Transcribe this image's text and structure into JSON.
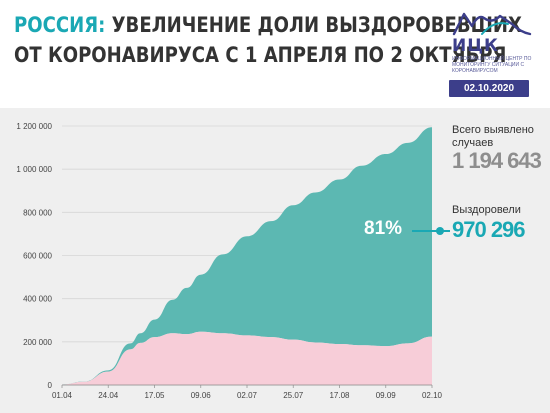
{
  "header": {
    "title_accent": "РОССИЯ:",
    "title_line1_rest": " УВЕЛИЧЕНИЕ ДОЛИ ВЫЗДОРОВЕВШИХ",
    "title_line2": "ОТ КОРОНАВИРУСА С 1 АПРЕЛЯ ПО 2 ОКТЯБРЯ",
    "logo_text": "ИЦК",
    "logo_subtitle": "Информационный центр по мониторингу ситуации с коронавирусом",
    "date": "02.10.2020"
  },
  "info": {
    "total_label": "Всего выявлено случаев",
    "total_value": "1 194 643",
    "recovered_label": "Выздоровели",
    "recovered_value": "970 296",
    "recovered_share": "81%"
  },
  "colors": {
    "recovered": "#5cb8b2",
    "active": "#f7cdd8",
    "accent": "#1aa8b4",
    "total_text": "#8e8e8e",
    "brand": "#3c3e8a"
  },
  "chart_data": {
    "type": "area",
    "stacked": true,
    "x_ticks": [
      "01.04",
      "24.04",
      "17.05",
      "09.06",
      "02.07",
      "25.07",
      "17.08",
      "09.09",
      "02.10"
    ],
    "y_ticks": [
      "0",
      "200 000",
      "400 000",
      "600 000",
      "800 000",
      "1 000 000",
      "1 200 000"
    ],
    "ylim": [
      0,
      1200000
    ],
    "x": [
      "01.04",
      "12.04",
      "24.04",
      "05.05",
      "10.05",
      "17.05",
      "26.05",
      "02.06",
      "09.06",
      "20.06",
      "02.07",
      "14.07",
      "25.07",
      "05.08",
      "17.08",
      "28.08",
      "09.09",
      "20.09",
      "02.10"
    ],
    "series": [
      {
        "values": [
          2300,
          15000,
          62000,
          165000,
          195000,
          222000,
          240000,
          236000,
          247000,
          240000,
          230000,
          222000,
          210000,
          197000,
          190000,
          184000,
          180000,
          193000,
          224000
        ]
      },
      {
        "values": [
          100,
          1000,
          6000,
          28000,
          45000,
          81000,
          155000,
          214000,
          264000,
          365000,
          459000,
          537000,
          623000,
          695000,
          762000,
          832000,
          890000,
          929000,
          970296
        ]
      }
    ]
  }
}
